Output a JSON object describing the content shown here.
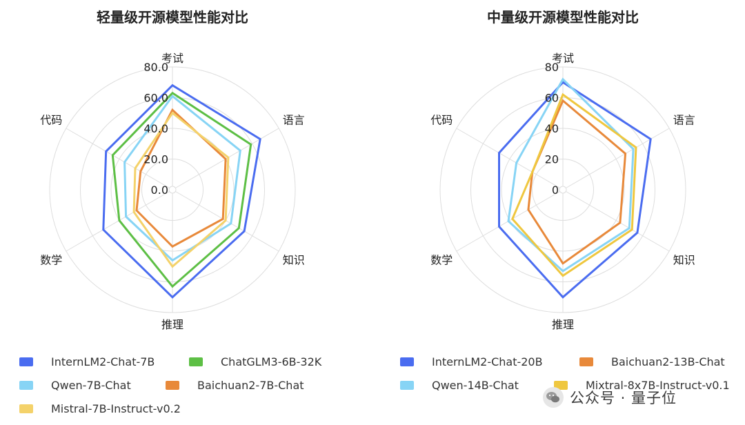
{
  "chart_data": [
    {
      "type": "radar",
      "title": "轻量级开源模型性能对比",
      "axes": [
        "考试",
        "语言",
        "知识",
        "推理",
        "数学",
        "代码"
      ],
      "rlim": [
        0,
        80
      ],
      "tick_labels": [
        "0.0",
        "20.0",
        "40.0",
        "60.0",
        "80.0"
      ],
      "grid": true,
      "series": [
        {
          "name": "InternLM2-Chat-7B",
          "color": "#4a6cf0",
          "values": [
            68,
            66,
            54,
            70,
            52,
            50
          ]
        },
        {
          "name": "Qwen-7B-Chat",
          "color": "#87d4f5",
          "values": [
            61,
            51,
            44,
            46,
            35,
            36
          ]
        },
        {
          "name": "ChatGLM3-6B-32K",
          "color": "#5dbf45",
          "values": [
            63,
            59,
            50,
            63,
            40,
            45
          ]
        },
        {
          "name": "Baichuan2-7B-Chat",
          "color": "#e8893a",
          "values": [
            52,
            40,
            38,
            37,
            27,
            24
          ]
        },
        {
          "name": "Mistral-7B-Instruct-v0.2",
          "color": "#f4d26a",
          "values": [
            50,
            42,
            40,
            50,
            29,
            28
          ]
        }
      ]
    },
    {
      "type": "radar",
      "title": "中量级开源模型性能对比",
      "axes": [
        "考试",
        "语言",
        "知识",
        "推理",
        "数学",
        "代码"
      ],
      "rlim": [
        0,
        80
      ],
      "tick_labels": [
        "0",
        "20",
        "40",
        "60",
        "80"
      ],
      "grid": true,
      "series": [
        {
          "name": "InternLM2-Chat-20B",
          "color": "#4a6cf0",
          "values": [
            70,
            66,
            56,
            70,
            48,
            48
          ]
        },
        {
          "name": "Baichuan2-13B-Chat",
          "color": "#e8893a",
          "values": [
            58,
            47,
            43,
            48,
            26,
            23
          ]
        },
        {
          "name": "Qwen-14B-Chat",
          "color": "#87d4f5",
          "values": [
            72,
            53,
            50,
            53,
            41,
            35
          ]
        },
        {
          "name": "Mixtral-8x7B-Instruct-v0.1",
          "color": "#efc73f",
          "values": [
            62,
            55,
            52,
            56,
            38,
            23
          ]
        }
      ]
    }
  ],
  "watermark": {
    "text": "公众号 · 量子位",
    "icon": "wechat-icon"
  }
}
